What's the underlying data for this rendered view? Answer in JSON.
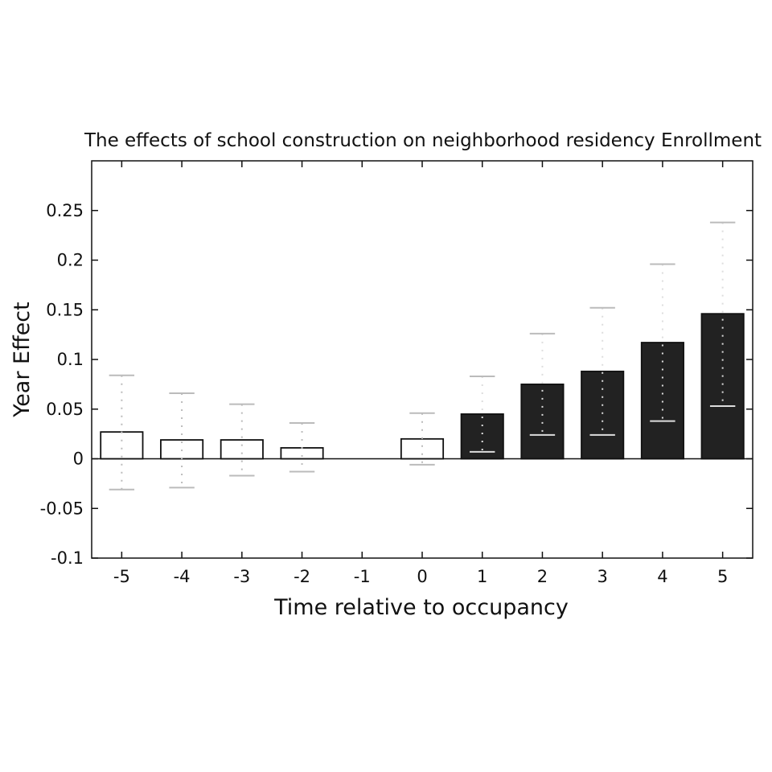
{
  "chart_data": {
    "type": "bar",
    "title": "The effects of school construction on neighborhood residency Enrollment",
    "xlabel": "Time relative to occupancy",
    "ylabel": "Year Effect",
    "categories": [
      "-5",
      "-4",
      "-3",
      "-2",
      "-1",
      "0",
      "1",
      "2",
      "3",
      "4",
      "5"
    ],
    "x": [
      -5,
      -4,
      -3,
      -2,
      -1,
      0,
      1,
      2,
      3,
      4,
      5
    ],
    "values": [
      0.027,
      0.019,
      0.019,
      0.011,
      0,
      0.02,
      0.045,
      0.075,
      0.088,
      0.117,
      0.146
    ],
    "error_upper": [
      0.084,
      0.066,
      0.055,
      0.036,
      null,
      0.046,
      0.083,
      0.126,
      0.152,
      0.196,
      0.238
    ],
    "error_lower": [
      -0.031,
      -0.029,
      -0.017,
      -0.013,
      null,
      -0.006,
      0.007,
      0.024,
      0.024,
      0.038,
      0.053
    ],
    "bar_fill": [
      "#ffffff",
      "#ffffff",
      "#ffffff",
      "#ffffff",
      "none",
      "#ffffff",
      "#222222",
      "#222222",
      "#222222",
      "#222222",
      "#222222"
    ],
    "yticks": [
      -0.1,
      -0.05,
      0,
      0.05,
      0.1,
      0.15,
      0.2,
      0.25
    ],
    "ytick_labels": [
      "-0.1",
      "-0.05",
      "0",
      "0.05",
      "0.1",
      "0.15",
      "0.2",
      "0.25"
    ],
    "ylim": [
      -0.1,
      0.3
    ],
    "xlim": [
      -5.5,
      5.5
    ],
    "grid": false,
    "colors": {
      "open_bar": "#ffffff",
      "filled_bar": "#222222",
      "error_bar": "#bbbbbb",
      "axis": "#111111"
    }
  }
}
